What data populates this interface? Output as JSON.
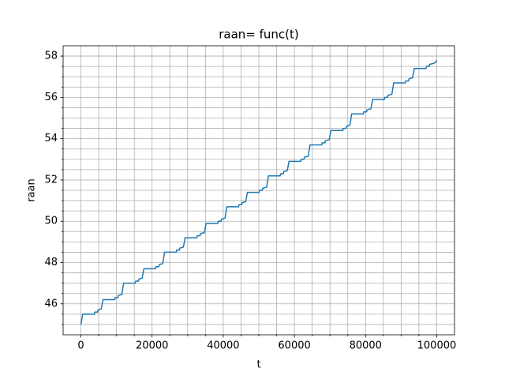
{
  "chart_data": {
    "type": "line",
    "title": "raan= func(t)",
    "x_label": "t",
    "y_label": "raan",
    "grid": true,
    "color": "#1f77b4",
    "xlim": [
      -5000,
      105000
    ],
    "ylim": [
      44.5,
      58.5
    ],
    "xticks": [
      0,
      20000,
      40000,
      60000,
      80000,
      100000
    ],
    "yticks": [
      46,
      48,
      50,
      52,
      54,
      56,
      58
    ],
    "xminorticks": [
      5000,
      10000,
      15000,
      25000,
      30000,
      35000,
      45000,
      50000,
      55000,
      65000,
      70000,
      75000,
      85000,
      90000,
      95000
    ],
    "yminorticks": [
      45,
      45.5,
      46.5,
      47,
      47.5,
      48.5,
      49,
      49.5,
      50.5,
      51,
      51.5,
      52.5,
      53,
      53.5,
      54.5,
      55,
      55.5,
      56.5,
      57,
      57.5,
      58
    ],
    "x": [
      0,
      500,
      3800,
      3900,
      4700,
      4800,
      5700,
      6200,
      9500,
      9600,
      10400,
      10500,
      11500,
      12000,
      15300,
      15400,
      16200,
      16300,
      17200,
      17700,
      21000,
      21100,
      21900,
      22000,
      23000,
      23500,
      26800,
      26900,
      27700,
      27800,
      28800,
      29300,
      32600,
      32700,
      33500,
      33600,
      34700,
      35200,
      38500,
      38600,
      39400,
      39500,
      40500,
      41000,
      44300,
      44400,
      45200,
      45300,
      46300,
      46800,
      50100,
      50200,
      51000,
      51100,
      52200,
      52700,
      56000,
      56100,
      56900,
      57000,
      58000,
      58500,
      61800,
      61900,
      62700,
      62800,
      63900,
      64400,
      67700,
      67800,
      68600,
      68700,
      69800,
      70300,
      73600,
      73700,
      74500,
      74600,
      75600,
      76100,
      79400,
      79500,
      80300,
      80400,
      81500,
      82000,
      85300,
      85400,
      86200,
      86300,
      87400,
      87900,
      91200,
      91300,
      92100,
      92200,
      93200,
      93700,
      97000,
      97100,
      97900,
      98000,
      99200,
      99700,
      100000
    ],
    "values": [
      45.0,
      45.5,
      45.5,
      45.6,
      45.6,
      45.7,
      45.75,
      46.2,
      46.2,
      46.3,
      46.3,
      46.4,
      46.45,
      47.0,
      47.0,
      47.1,
      47.1,
      47.2,
      47.25,
      47.7,
      47.7,
      47.8,
      47.8,
      47.9,
      47.95,
      48.5,
      48.5,
      48.6,
      48.6,
      48.7,
      48.75,
      49.2,
      49.2,
      49.3,
      49.3,
      49.4,
      49.45,
      49.9,
      49.9,
      50.0,
      50.0,
      50.1,
      50.15,
      50.7,
      50.7,
      50.8,
      50.8,
      50.9,
      50.95,
      51.4,
      51.4,
      51.5,
      51.5,
      51.6,
      51.65,
      52.2,
      52.2,
      52.3,
      52.3,
      52.4,
      52.45,
      52.9,
      52.9,
      53.0,
      53.0,
      53.1,
      53.15,
      53.7,
      53.7,
      53.8,
      53.8,
      53.9,
      53.95,
      54.4,
      54.4,
      54.5,
      54.5,
      54.6,
      54.65,
      55.2,
      55.2,
      55.3,
      55.3,
      55.4,
      55.45,
      55.9,
      55.9,
      56.0,
      56.0,
      56.1,
      56.15,
      56.7,
      56.7,
      56.8,
      56.8,
      56.9,
      56.95,
      57.4,
      57.4,
      57.5,
      57.5,
      57.6,
      57.65,
      57.7,
      57.8
    ]
  }
}
